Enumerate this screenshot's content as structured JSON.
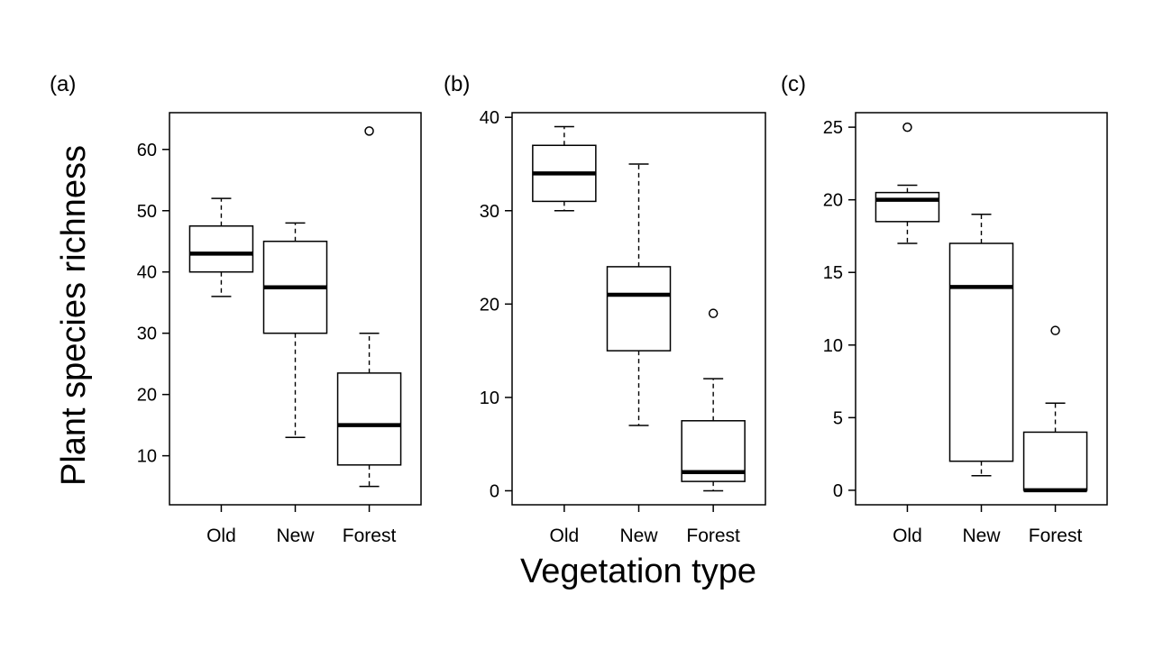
{
  "figure": {
    "ylabel": "Plant species richness",
    "xlabel": "Vegetation type"
  },
  "chart_data": [
    {
      "type": "boxplot",
      "panel_label": "(a)",
      "categories": [
        "Old",
        "New",
        "Forest"
      ],
      "ylim": [
        2,
        66
      ],
      "yticks": [
        10,
        20,
        30,
        40,
        50,
        60
      ],
      "boxes": [
        {
          "category": "Old",
          "whisker_low": 36,
          "q1": 40,
          "median": 43,
          "q3": 47.5,
          "whisker_high": 52,
          "outliers": []
        },
        {
          "category": "New",
          "whisker_low": 13,
          "q1": 30,
          "median": 37.5,
          "q3": 45,
          "whisker_high": 48,
          "outliers": []
        },
        {
          "category": "Forest",
          "whisker_low": 5,
          "q1": 8.5,
          "median": 15,
          "q3": 23.5,
          "whisker_high": 30,
          "outliers": [
            63
          ]
        }
      ]
    },
    {
      "type": "boxplot",
      "panel_label": "(b)",
      "categories": [
        "Old",
        "New",
        "Forest"
      ],
      "ylim": [
        -1.5,
        40.5
      ],
      "yticks": [
        0,
        10,
        20,
        30,
        40
      ],
      "boxes": [
        {
          "category": "Old",
          "whisker_low": 30,
          "q1": 31,
          "median": 34,
          "q3": 37,
          "whisker_high": 39,
          "outliers": []
        },
        {
          "category": "New",
          "whisker_low": 7,
          "q1": 15,
          "median": 21,
          "q3": 24,
          "whisker_high": 35,
          "outliers": []
        },
        {
          "category": "Forest",
          "whisker_low": 0,
          "q1": 1,
          "median": 2,
          "q3": 7.5,
          "whisker_high": 12,
          "outliers": [
            19
          ]
        }
      ]
    },
    {
      "type": "boxplot",
      "panel_label": "(c)",
      "categories": [
        "Old",
        "New",
        "Forest"
      ],
      "ylim": [
        -1,
        26
      ],
      "yticks": [
        0,
        5,
        10,
        15,
        20,
        25
      ],
      "boxes": [
        {
          "category": "Old",
          "whisker_low": 17,
          "q1": 18.5,
          "median": 20,
          "q3": 20.5,
          "whisker_high": 21,
          "outliers": [
            25
          ]
        },
        {
          "category": "New",
          "whisker_low": 1,
          "q1": 2,
          "median": 14,
          "q3": 17,
          "whisker_high": 19,
          "outliers": []
        },
        {
          "category": "Forest",
          "whisker_low": 0,
          "q1": 0,
          "median": 0,
          "q3": 4,
          "whisker_high": 6,
          "outliers": [
            11
          ]
        }
      ]
    }
  ]
}
